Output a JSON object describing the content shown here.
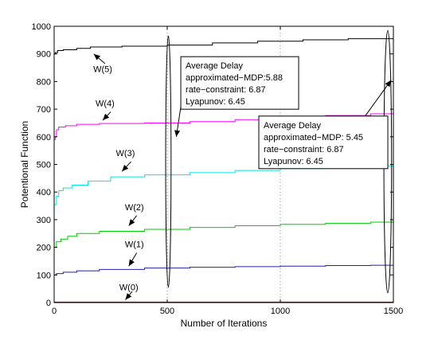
{
  "chart_data": {
    "type": "line",
    "title": "",
    "xlabel": "Number of Iterations",
    "ylabel": "Potentional Function",
    "xlim": [
      0,
      1500
    ],
    "ylim": [
      0,
      1000
    ],
    "xticks": [
      0,
      500,
      1000,
      1500
    ],
    "yticks": [
      0,
      100,
      200,
      300,
      400,
      500,
      600,
      700,
      800,
      900,
      1000
    ],
    "grid": "dotted vertical lines at x = 500 and x = 1000",
    "series": [
      {
        "name": "W(5)",
        "color": "#000000",
        "points": [
          [
            0,
            900
          ],
          [
            5,
            905
          ],
          [
            15,
            912
          ],
          [
            40,
            915
          ],
          [
            100,
            920
          ],
          [
            160,
            925
          ],
          [
            300,
            928
          ],
          [
            500,
            932
          ],
          [
            700,
            940
          ],
          [
            900,
            946
          ],
          [
            1100,
            951
          ],
          [
            1300,
            955
          ],
          [
            1500,
            960
          ]
        ]
      },
      {
        "name": "W(4)",
        "color": "#ff00ff",
        "points": [
          [
            0,
            590
          ],
          [
            5,
            600
          ],
          [
            10,
            625
          ],
          [
            20,
            635
          ],
          [
            50,
            640
          ],
          [
            100,
            645
          ],
          [
            200,
            648
          ],
          [
            400,
            650
          ],
          [
            600,
            655
          ],
          [
            800,
            662
          ],
          [
            1000,
            670
          ],
          [
            1200,
            677
          ],
          [
            1400,
            683
          ],
          [
            1500,
            685
          ]
        ]
      },
      {
        "name": "W(3)",
        "color": "#00e5e5",
        "points": [
          [
            0,
            355
          ],
          [
            10,
            385
          ],
          [
            20,
            405
          ],
          [
            40,
            415
          ],
          [
            80,
            425
          ],
          [
            150,
            440
          ],
          [
            250,
            455
          ],
          [
            400,
            462
          ],
          [
            600,
            470
          ],
          [
            800,
            478
          ],
          [
            1000,
            485
          ],
          [
            1200,
            490
          ],
          [
            1400,
            495
          ],
          [
            1500,
            498
          ]
        ]
      },
      {
        "name": "W(2)",
        "color": "#00cc00",
        "points": [
          [
            0,
            200
          ],
          [
            10,
            220
          ],
          [
            30,
            230
          ],
          [
            60,
            240
          ],
          [
            100,
            250
          ],
          [
            200,
            258
          ],
          [
            400,
            265
          ],
          [
            600,
            272
          ],
          [
            800,
            278
          ],
          [
            1000,
            283
          ],
          [
            1200,
            287
          ],
          [
            1400,
            291
          ],
          [
            1500,
            293
          ]
        ]
      },
      {
        "name": "W(1)",
        "color": "#2222aa",
        "points": [
          [
            0,
            100
          ],
          [
            10,
            105
          ],
          [
            40,
            110
          ],
          [
            100,
            115
          ],
          [
            200,
            120
          ],
          [
            400,
            125
          ],
          [
            600,
            128
          ],
          [
            800,
            130
          ],
          [
            1000,
            132
          ],
          [
            1200,
            134
          ],
          [
            1400,
            135
          ],
          [
            1500,
            135
          ]
        ]
      },
      {
        "name": "W(0)",
        "color": "#cc0000",
        "points": [
          [
            0,
            1
          ],
          [
            1500,
            1
          ]
        ]
      }
    ],
    "annotations": {
      "series_labels": [
        {
          "text": "W(5)",
          "x": 215,
          "y": 835,
          "arrow_from": [
            225,
            865
          ],
          "arrow_to": [
            175,
            900
          ]
        },
        {
          "text": "W(4)",
          "x": 225,
          "y": 710,
          "arrow_from": [
            250,
            690
          ],
          "arrow_to": [
            215,
            660
          ]
        },
        {
          "text": "W(3)",
          "x": 315,
          "y": 530,
          "arrow_from": [
            340,
            510
          ],
          "arrow_to": [
            300,
            475
          ]
        },
        {
          "text": "W(2)",
          "x": 355,
          "y": 335,
          "arrow_from": [
            365,
            315
          ],
          "arrow_to": [
            330,
            278
          ]
        },
        {
          "text": "W(1)",
          "x": 355,
          "y": 200,
          "arrow_from": [
            365,
            180
          ],
          "arrow_to": [
            330,
            132
          ]
        },
        {
          "text": "W(0)",
          "x": 330,
          "y": 45,
          "arrow_from": [
            345,
            40
          ],
          "arrow_to": [
            315,
            10
          ]
        }
      ],
      "ellipses": [
        {
          "cx": 505,
          "cy": 510,
          "rx": 12,
          "ry": 455
        },
        {
          "cx": 1475,
          "cy": 510,
          "rx": 17,
          "ry": 475
        }
      ],
      "boxes": [
        {
          "title": "Average Delay",
          "lines": [
            "approximated−MDP:5.88",
            "rate−constraint:  6.87",
            "Lyapunov: 6.45"
          ],
          "anchor": [
            560,
            890
          ],
          "arrow_from": [
            565,
            735
          ],
          "arrow_to": [
            540,
            600
          ]
        },
        {
          "title": "Average Delay",
          "lines": [
            "approximated−MDP: 5.45",
            "rate−constraint: 6.87",
            "Lyapunov: 6.45"
          ],
          "anchor": [
            905,
            675
          ],
          "arrow_from": [
            1375,
            675
          ],
          "arrow_to": [
            1490,
            805
          ]
        }
      ]
    }
  }
}
